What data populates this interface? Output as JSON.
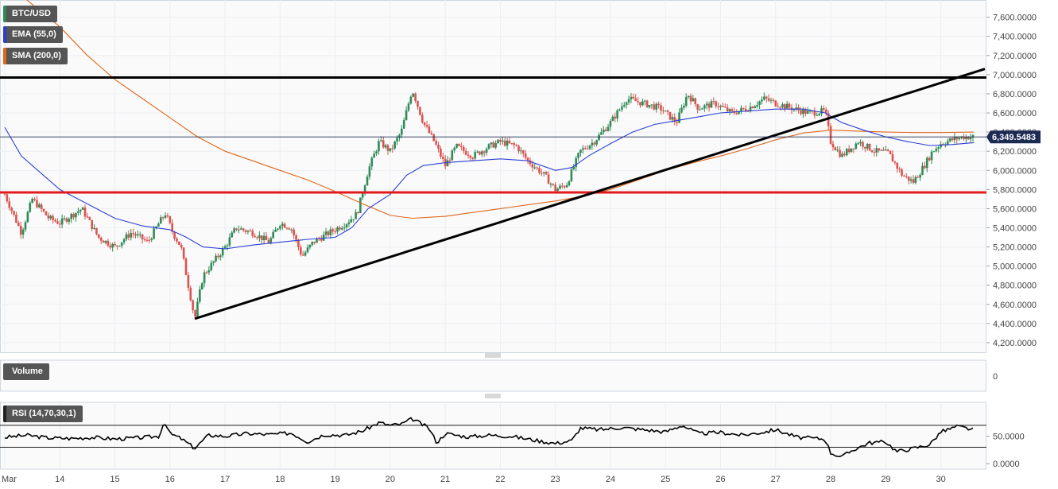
{
  "legend": {
    "symbol": "BTC/USD",
    "ema": "EMA (55,0)",
    "sma": "SMA (200,0)",
    "volume": "Volume",
    "rsi": "RSI (14,70,30,1)"
  },
  "colors": {
    "symbol": "#2e8b57",
    "ema": "#2b3fd6",
    "sma": "#e0661a",
    "up": "#2e8b57",
    "down": "#d9534f",
    "support": "#e31a1c",
    "trend": "#000000"
  },
  "price_label": "6,349.5483",
  "chart_data": {
    "type": "candlestick",
    "price_axis": {
      "ylim": [
        4100,
        7780
      ],
      "ticks": [
        "4,200.0000",
        "4,400.0000",
        "4,600.0000",
        "4,800.0000",
        "5,000.0000",
        "5,200.0000",
        "5,400.0000",
        "5,600.0000",
        "5,800.0000",
        "6,000.0000",
        "6,200.0000",
        "6,400.0000",
        "6,600.0000",
        "6,800.0000",
        "7,000.0000",
        "7,200.0000",
        "7,400.0000",
        "7,600.0000"
      ],
      "tick_values": [
        4200,
        4400,
        4600,
        4800,
        5000,
        5200,
        5400,
        5600,
        5800,
        6000,
        6200,
        6400,
        6600,
        6800,
        7000,
        7200,
        7400,
        7600
      ]
    },
    "x_labels": [
      "Mar",
      "14",
      "15",
      "16",
      "17",
      "18",
      "19",
      "20",
      "21",
      "22",
      "23",
      "24",
      "25",
      "26",
      "27",
      "28",
      "29",
      "30"
    ],
    "x_days": [
      13,
      14,
      15,
      16,
      17,
      18,
      19,
      20,
      21,
      22,
      23,
      24,
      25,
      26,
      27,
      28,
      29,
      30
    ],
    "x_range": [
      13,
      30.8
    ],
    "last_price": 6349.5483,
    "resistance": 6970,
    "support": 5770,
    "trendline": [
      [
        16.45,
        4450
      ],
      [
        30.8,
        7060
      ]
    ],
    "price_path": [
      [
        13,
        5750
      ],
      [
        13.3,
        5350
      ],
      [
        13.5,
        5700
      ],
      [
        13.8,
        5500
      ],
      [
        14,
        5450
      ],
      [
        14.4,
        5600
      ],
      [
        14.7,
        5300
      ],
      [
        15,
        5200
      ],
      [
        15.3,
        5350
      ],
      [
        15.6,
        5250
      ],
      [
        15.8,
        5450
      ],
      [
        15.92,
        5550
      ],
      [
        16.05,
        5350
      ],
      [
        16.2,
        5200
      ],
      [
        16.3,
        4900
      ],
      [
        16.45,
        4450
      ],
      [
        16.6,
        4900
      ],
      [
        16.8,
        5050
      ],
      [
        17,
        5200
      ],
      [
        17.2,
        5400
      ],
      [
        17.5,
        5350
      ],
      [
        17.8,
        5250
      ],
      [
        18,
        5450
      ],
      [
        18.2,
        5400
      ],
      [
        18.4,
        5100
      ],
      [
        18.6,
        5250
      ],
      [
        18.9,
        5350
      ],
      [
        19.2,
        5450
      ],
      [
        19.4,
        5550
      ],
      [
        19.6,
        6000
      ],
      [
        19.8,
        6300
      ],
      [
        20,
        6200
      ],
      [
        20.2,
        6400
      ],
      [
        20.4,
        6850
      ],
      [
        20.6,
        6500
      ],
      [
        20.8,
        6300
      ],
      [
        21,
        6050
      ],
      [
        21.2,
        6250
      ],
      [
        21.5,
        6150
      ],
      [
        21.8,
        6250
      ],
      [
        22,
        6300
      ],
      [
        22.3,
        6250
      ],
      [
        22.5,
        6100
      ],
      [
        22.8,
        5950
      ],
      [
        23,
        5800
      ],
      [
        23.2,
        5850
      ],
      [
        23.45,
        6200
      ],
      [
        23.7,
        6300
      ],
      [
        24,
        6500
      ],
      [
        24.3,
        6750
      ],
      [
        24.6,
        6700
      ],
      [
        24.9,
        6650
      ],
      [
        25.2,
        6500
      ],
      [
        25.4,
        6800
      ],
      [
        25.6,
        6650
      ],
      [
        25.9,
        6700
      ],
      [
        26.2,
        6600
      ],
      [
        26.5,
        6650
      ],
      [
        26.8,
        6750
      ],
      [
        27,
        6700
      ],
      [
        27.3,
        6650
      ],
      [
        27.6,
        6600
      ],
      [
        27.9,
        6620
      ],
      [
        28,
        6300
      ],
      [
        28.2,
        6150
      ],
      [
        28.5,
        6300
      ],
      [
        28.8,
        6200
      ],
      [
        29.05,
        6180
      ],
      [
        29.3,
        5950
      ],
      [
        29.5,
        5880
      ],
      [
        29.7,
        6050
      ],
      [
        29.85,
        6200
      ],
      [
        30,
        6280
      ],
      [
        30.2,
        6320
      ],
      [
        30.4,
        6350
      ],
      [
        30.6,
        6349
      ]
    ],
    "ema_path": [
      [
        13,
        6450
      ],
      [
        13.3,
        6150
      ],
      [
        13.7,
        5950
      ],
      [
        14,
        5800
      ],
      [
        14.5,
        5650
      ],
      [
        15,
        5500
      ],
      [
        15.5,
        5420
      ],
      [
        16,
        5380
      ],
      [
        16.3,
        5300
      ],
      [
        16.6,
        5200
      ],
      [
        17,
        5180
      ],
      [
        17.5,
        5220
      ],
      [
        18,
        5250
      ],
      [
        18.5,
        5280
      ],
      [
        19,
        5300
      ],
      [
        19.3,
        5400
      ],
      [
        19.6,
        5600
      ],
      [
        20,
        5750
      ],
      [
        20.3,
        5950
      ],
      [
        20.6,
        6050
      ],
      [
        21,
        6080
      ],
      [
        21.5,
        6100
      ],
      [
        22,
        6120
      ],
      [
        22.5,
        6100
      ],
      [
        23,
        6000
      ],
      [
        23.3,
        6030
      ],
      [
        23.6,
        6150
      ],
      [
        24,
        6280
      ],
      [
        24.4,
        6400
      ],
      [
        24.8,
        6480
      ],
      [
        25.2,
        6520
      ],
      [
        25.6,
        6560
      ],
      [
        26,
        6600
      ],
      [
        26.5,
        6620
      ],
      [
        27,
        6640
      ],
      [
        27.5,
        6640
      ],
      [
        27.9,
        6600
      ],
      [
        28.2,
        6500
      ],
      [
        28.6,
        6420
      ],
      [
        29,
        6350
      ],
      [
        29.4,
        6300
      ],
      [
        29.8,
        6260
      ],
      [
        30.2,
        6270
      ],
      [
        30.6,
        6290
      ]
    ],
    "sma_path": [
      [
        13.4,
        7780
      ],
      [
        14,
        7500
      ],
      [
        14.5,
        7200
      ],
      [
        15,
        6950
      ],
      [
        15.5,
        6750
      ],
      [
        16,
        6550
      ],
      [
        16.5,
        6350
      ],
      [
        17,
        6200
      ],
      [
        17.5,
        6100
      ],
      [
        18,
        6000
      ],
      [
        18.5,
        5900
      ],
      [
        19,
        5780
      ],
      [
        19.5,
        5650
      ],
      [
        20,
        5530
      ],
      [
        20.4,
        5500
      ],
      [
        21,
        5520
      ],
      [
        21.5,
        5560
      ],
      [
        22,
        5600
      ],
      [
        22.5,
        5640
      ],
      [
        23,
        5680
      ],
      [
        23.5,
        5730
      ],
      [
        24,
        5800
      ],
      [
        24.5,
        5900
      ],
      [
        25,
        6000
      ],
      [
        25.5,
        6080
      ],
      [
        26,
        6150
      ],
      [
        26.5,
        6230
      ],
      [
        27,
        6320
      ],
      [
        27.5,
        6390
      ],
      [
        28,
        6420
      ],
      [
        28.5,
        6410
      ],
      [
        29,
        6400
      ],
      [
        29.5,
        6395
      ],
      [
        30,
        6395
      ],
      [
        30.6,
        6400
      ]
    ],
    "rsi_axis": {
      "ylim": [
        -10,
        112
      ],
      "ticks": [
        "0.0000",
        "50.0000"
      ],
      "tick_values": [
        0,
        50
      ],
      "levels": [
        70,
        30
      ]
    },
    "rsi_path": [
      [
        13,
        48
      ],
      [
        13.4,
        52
      ],
      [
        13.8,
        47
      ],
      [
        14.2,
        46
      ],
      [
        14.6,
        48
      ],
      [
        15,
        45
      ],
      [
        15.4,
        47
      ],
      [
        15.8,
        50
      ],
      [
        15.9,
        78
      ],
      [
        16,
        55
      ],
      [
        16.2,
        46
      ],
      [
        16.45,
        28
      ],
      [
        16.7,
        52
      ],
      [
        17,
        50
      ],
      [
        17.4,
        55
      ],
      [
        17.8,
        53
      ],
      [
        18.2,
        56
      ],
      [
        18.5,
        40
      ],
      [
        18.8,
        53
      ],
      [
        19.2,
        52
      ],
      [
        19.5,
        60
      ],
      [
        19.8,
        75
      ],
      [
        20,
        70
      ],
      [
        20.2,
        72
      ],
      [
        20.4,
        82
      ],
      [
        20.7,
        65
      ],
      [
        20.85,
        38
      ],
      [
        21,
        55
      ],
      [
        21.4,
        49
      ],
      [
        21.8,
        52
      ],
      [
        22.2,
        50
      ],
      [
        22.5,
        45
      ],
      [
        22.8,
        40
      ],
      [
        23,
        37
      ],
      [
        23.3,
        42
      ],
      [
        23.45,
        65
      ],
      [
        23.8,
        62
      ],
      [
        24.2,
        66
      ],
      [
        24.6,
        62
      ],
      [
        25,
        58
      ],
      [
        25.3,
        70
      ],
      [
        25.6,
        55
      ],
      [
        26,
        57
      ],
      [
        26.4,
        52
      ],
      [
        26.8,
        58
      ],
      [
        27,
        62
      ],
      [
        27.4,
        48
      ],
      [
        27.9,
        45
      ],
      [
        28,
        20
      ],
      [
        28.2,
        12
      ],
      [
        28.4,
        25
      ],
      [
        28.7,
        38
      ],
      [
        29,
        40
      ],
      [
        29.2,
        22
      ],
      [
        29.5,
        28
      ],
      [
        29.8,
        35
      ],
      [
        30,
        58
      ],
      [
        30.3,
        68
      ],
      [
        30.6,
        62
      ]
    ],
    "volume_ticks": [
      "0"
    ]
  }
}
